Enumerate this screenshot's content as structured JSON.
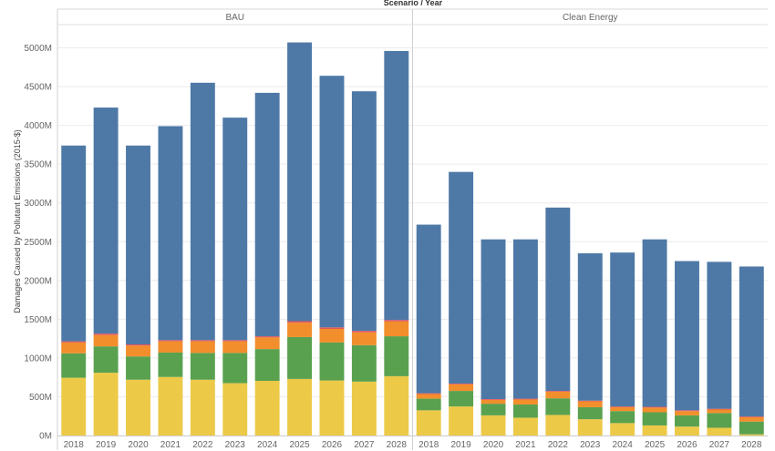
{
  "chart_data": {
    "type": "bar",
    "stacked": true,
    "title": "Scenario / Year",
    "ylabel": "Damages Caused by Pollutant Emissions (2015-$)",
    "ylim": [
      0,
      5300
    ],
    "yticks": [
      0,
      500,
      1000,
      1500,
      2000,
      2500,
      3000,
      3500,
      4000,
      4500,
      5000
    ],
    "ytick_labels": [
      "0M",
      "500M",
      "1000M",
      "1500M",
      "2000M",
      "2500M",
      "3000M",
      "3500M",
      "4000M",
      "4500M",
      "5000M"
    ],
    "grid": true,
    "legend": "none",
    "series_colors": [
      "#EDC948",
      "#59A14F",
      "#F28E2B",
      "#E15759",
      "#4E79A7"
    ],
    "panels": [
      {
        "label": "BAU",
        "categories": [
          "2018",
          "2019",
          "2020",
          "2021",
          "2022",
          "2023",
          "2024",
          "2025",
          "2026",
          "2027",
          "2028"
        ],
        "series": [
          {
            "values": [
              745,
              810,
              720,
              755,
              720,
              675,
              705,
              730,
              710,
              695,
              765
            ]
          },
          {
            "values": [
              315,
              340,
              300,
              315,
              345,
              390,
              410,
              540,
              490,
              470,
              515
            ]
          },
          {
            "values": [
              140,
              145,
              140,
              145,
              150,
              150,
              150,
              185,
              175,
              165,
              190
            ]
          },
          {
            "values": [
              15,
              20,
              15,
              15,
              15,
              15,
              15,
              20,
              20,
              20,
              20
            ]
          },
          {
            "values": [
              2525,
              2915,
              2565,
              2760,
              3320,
              2870,
              3140,
              3595,
              3245,
              3090,
              3470
            ]
          }
        ]
      },
      {
        "label": "Clean Energy",
        "categories": [
          "2018",
          "2019",
          "2020",
          "2021",
          "2022",
          "2023",
          "2024",
          "2025",
          "2026",
          "2027",
          "2028"
        ],
        "series": [
          {
            "values": [
              325,
              375,
              260,
              230,
              265,
              210,
              160,
              130,
              115,
              100,
              15
            ]
          },
          {
            "values": [
              150,
              200,
              150,
              170,
              215,
              155,
              155,
              170,
              145,
              190,
              165
            ]
          },
          {
            "values": [
              60,
              85,
              50,
              65,
              85,
              75,
              50,
              60,
              55,
              45,
              55
            ]
          },
          {
            "values": [
              10,
              10,
              10,
              10,
              10,
              10,
              10,
              10,
              10,
              10,
              10
            ]
          },
          {
            "values": [
              2175,
              2730,
              2060,
              2055,
              2365,
              1900,
              1985,
              2160,
              1925,
              1895,
              1935
            ]
          }
        ]
      }
    ]
  }
}
